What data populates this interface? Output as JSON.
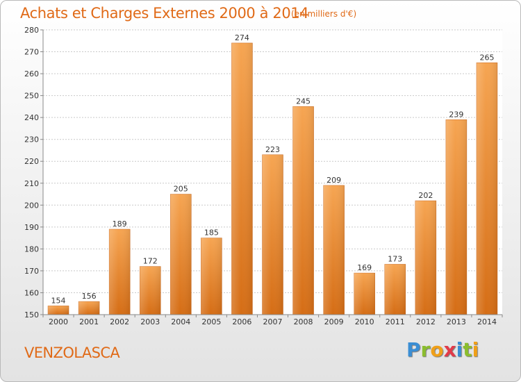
{
  "header": {
    "title": "Achats et Charges Externes 2000 à 2014",
    "subtitle": "(en milliers d'€)"
  },
  "footer": {
    "place": "VENZOLASCA",
    "logo_letters": [
      "P",
      "r",
      "o",
      "x",
      "i",
      "t",
      "i"
    ],
    "logo_colors": [
      "#3b8ed4",
      "#8bbd2e",
      "#f0a019",
      "#e23b4a",
      "#3b8ed4",
      "#8bbd2e",
      "#f0a019"
    ]
  },
  "colors": {
    "title": "#e06a17",
    "bar_top": "#f6a552",
    "bar_bottom": "#d56d15",
    "grid": "#c9c9c9",
    "axis": "#888888"
  },
  "chart_data": {
    "type": "bar",
    "title": "Achats et Charges Externes 2000 à 2014",
    "subtitle": "(en milliers d'€)",
    "categories": [
      "2000",
      "2001",
      "2002",
      "2003",
      "2004",
      "2005",
      "2006",
      "2007",
      "2008",
      "2009",
      "2010",
      "2011",
      "2012",
      "2013",
      "2014"
    ],
    "values": [
      154,
      156,
      189,
      172,
      205,
      185,
      274,
      223,
      245,
      209,
      169,
      173,
      202,
      239,
      265
    ],
    "ylim": [
      150,
      280
    ],
    "yticks": [
      150,
      160,
      170,
      180,
      190,
      200,
      210,
      220,
      230,
      240,
      250,
      260,
      270,
      280
    ],
    "grid": true,
    "data_labels": true
  }
}
